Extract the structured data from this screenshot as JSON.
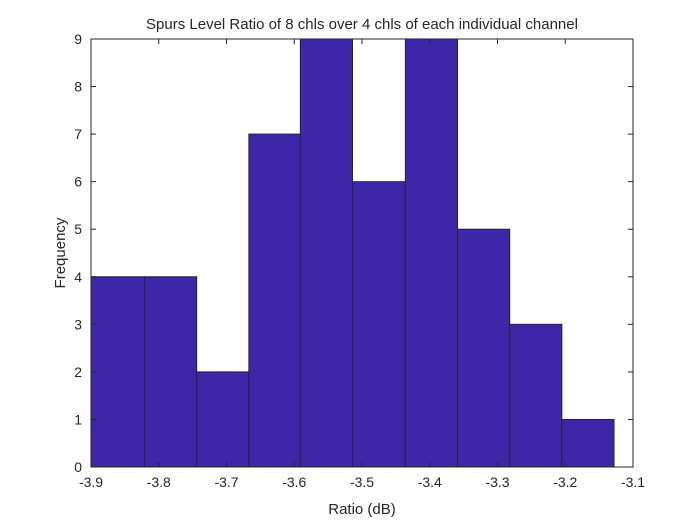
{
  "chart_data": {
    "type": "bar",
    "title": "Spurs Level Ratio of 8 chls over 4 chls of each individual channel",
    "xlabel": "Ratio (dB)",
    "ylabel": "Frequency",
    "xlim": [
      -3.9,
      -3.1
    ],
    "ylim": [
      0,
      9
    ],
    "xticks": [
      -3.9,
      -3.8,
      -3.7,
      -3.6,
      -3.5,
      -3.4,
      -3.3,
      -3.2,
      -3.1
    ],
    "xtick_labels": [
      "-3.9",
      "-3.8",
      "-3.7",
      "-3.6",
      "-3.5",
      "-3.4",
      "-3.3",
      "-3.2",
      "-3.1"
    ],
    "yticks": [
      0,
      1,
      2,
      3,
      4,
      5,
      6,
      7,
      8,
      9
    ],
    "ytick_labels": [
      "0",
      "1",
      "2",
      "3",
      "4",
      "5",
      "6",
      "7",
      "8",
      "9"
    ],
    "bin_edges": [
      -3.9,
      -3.821,
      -3.744,
      -3.667,
      -3.591,
      -3.514,
      -3.436,
      -3.359,
      -3.282,
      -3.205,
      -3.128
    ],
    "values": [
      4,
      4,
      2,
      7,
      9,
      6,
      9,
      5,
      3,
      1
    ],
    "bar_color": "#3d26a8",
    "grid": false
  }
}
